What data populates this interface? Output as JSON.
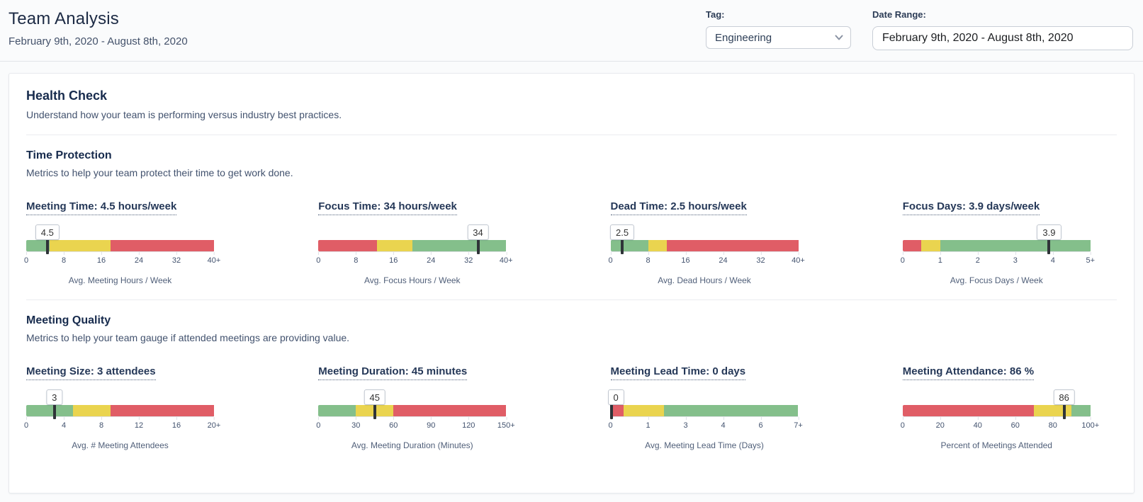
{
  "header": {
    "title": "Team Analysis",
    "subtitle": "February 9th, 2020 - August 8th, 2020",
    "tag_label": "Tag:",
    "tag_value": "Engineering",
    "date_range_label": "Date Range:",
    "date_range_value": "February 9th, 2020 - August 8th, 2020"
  },
  "health_check": {
    "title": "Health Check",
    "subtitle": "Understand how your team is performing versus industry best practices."
  },
  "colors": {
    "green": "#84BF8B",
    "yellow": "#EAD44F",
    "red": "#E05D66",
    "marker": "#2f3438"
  },
  "sections": [
    {
      "title": "Time Protection",
      "subtitle": "Metrics to help your team protect their time to get work done.",
      "gauges": [
        {
          "title": "Meeting Time: 4.5 hours/week",
          "value": 4.5,
          "value_label": "4.5",
          "max": 40,
          "segments": [
            {
              "color": "green",
              "from": 0,
              "to": 5
            },
            {
              "color": "yellow",
              "from": 5,
              "to": 18
            },
            {
              "color": "red",
              "from": 18,
              "to": 40
            }
          ],
          "ticks": [
            "0",
            "8",
            "16",
            "24",
            "32",
            "40+"
          ],
          "caption": "Avg. Meeting Hours / Week"
        },
        {
          "title": "Focus Time: 34 hours/week",
          "value": 34,
          "value_label": "34",
          "max": 40,
          "segments": [
            {
              "color": "red",
              "from": 0,
              "to": 12.5
            },
            {
              "color": "yellow",
              "from": 12.5,
              "to": 20
            },
            {
              "color": "green",
              "from": 20,
              "to": 40
            }
          ],
          "ticks": [
            "0",
            "8",
            "16",
            "24",
            "32",
            "40+"
          ],
          "caption": "Avg. Focus Hours / Week"
        },
        {
          "title": "Dead Time: 2.5 hours/week",
          "value": 2.5,
          "value_label": "2.5",
          "max": 40,
          "segments": [
            {
              "color": "green",
              "from": 0,
              "to": 8
            },
            {
              "color": "yellow",
              "from": 8,
              "to": 12
            },
            {
              "color": "red",
              "from": 12,
              "to": 40
            }
          ],
          "ticks": [
            "0",
            "8",
            "16",
            "24",
            "32",
            "40+"
          ],
          "caption": "Avg. Dead Hours / Week"
        },
        {
          "title": "Focus Days: 3.9 days/week",
          "value": 3.9,
          "value_label": "3.9",
          "max": 5,
          "segments": [
            {
              "color": "red",
              "from": 0,
              "to": 0.5
            },
            {
              "color": "yellow",
              "from": 0.5,
              "to": 1
            },
            {
              "color": "green",
              "from": 1,
              "to": 5
            }
          ],
          "ticks": [
            "0",
            "1",
            "2",
            "3",
            "4",
            "5+"
          ],
          "caption": "Avg. Focus Days / Week"
        }
      ]
    },
    {
      "title": "Meeting Quality",
      "subtitle": "Metrics to help your team gauge if attended meetings are providing value.",
      "gauges": [
        {
          "title": "Meeting Size: 3 attendees",
          "value": 3,
          "value_label": "3",
          "max": 20,
          "segments": [
            {
              "color": "green",
              "from": 0,
              "to": 5
            },
            {
              "color": "yellow",
              "from": 5,
              "to": 9
            },
            {
              "color": "red",
              "from": 9,
              "to": 20
            }
          ],
          "ticks": [
            "0",
            "4",
            "8",
            "12",
            "16",
            "20+"
          ],
          "caption": "Avg. # Meeting Attendees"
        },
        {
          "title": "Meeting Duration: 45 minutes",
          "value": 45,
          "value_label": "45",
          "max": 150,
          "segments": [
            {
              "color": "green",
              "from": 0,
              "to": 30
            },
            {
              "color": "yellow",
              "from": 30,
              "to": 60
            },
            {
              "color": "red",
              "from": 60,
              "to": 150
            }
          ],
          "ticks": [
            "0",
            "30",
            "60",
            "90",
            "120",
            "150+"
          ],
          "caption": "Avg. Meeting Duration (Minutes)"
        },
        {
          "title": "Meeting Lead Time: 0 days",
          "value": 0,
          "value_label": "0",
          "max": 7,
          "segments": [
            {
              "color": "red",
              "from": 0,
              "to": 0.5
            },
            {
              "color": "yellow",
              "from": 0.5,
              "to": 2
            },
            {
              "color": "green",
              "from": 2,
              "to": 7
            }
          ],
          "ticks": [
            "0",
            "1",
            "3",
            "4",
            "6",
            "7+"
          ],
          "caption": "Avg. Meeting Lead Time (Days)"
        },
        {
          "title": "Meeting Attendance: 86 %",
          "value": 86,
          "value_label": "86",
          "max": 100,
          "segments": [
            {
              "color": "red",
              "from": 0,
              "to": 70
            },
            {
              "color": "yellow",
              "from": 70,
              "to": 90
            },
            {
              "color": "green",
              "from": 90,
              "to": 100
            }
          ],
          "ticks": [
            "0",
            "20",
            "40",
            "60",
            "80",
            "100+"
          ],
          "caption": "Percent of Meetings Attended"
        }
      ]
    }
  ]
}
